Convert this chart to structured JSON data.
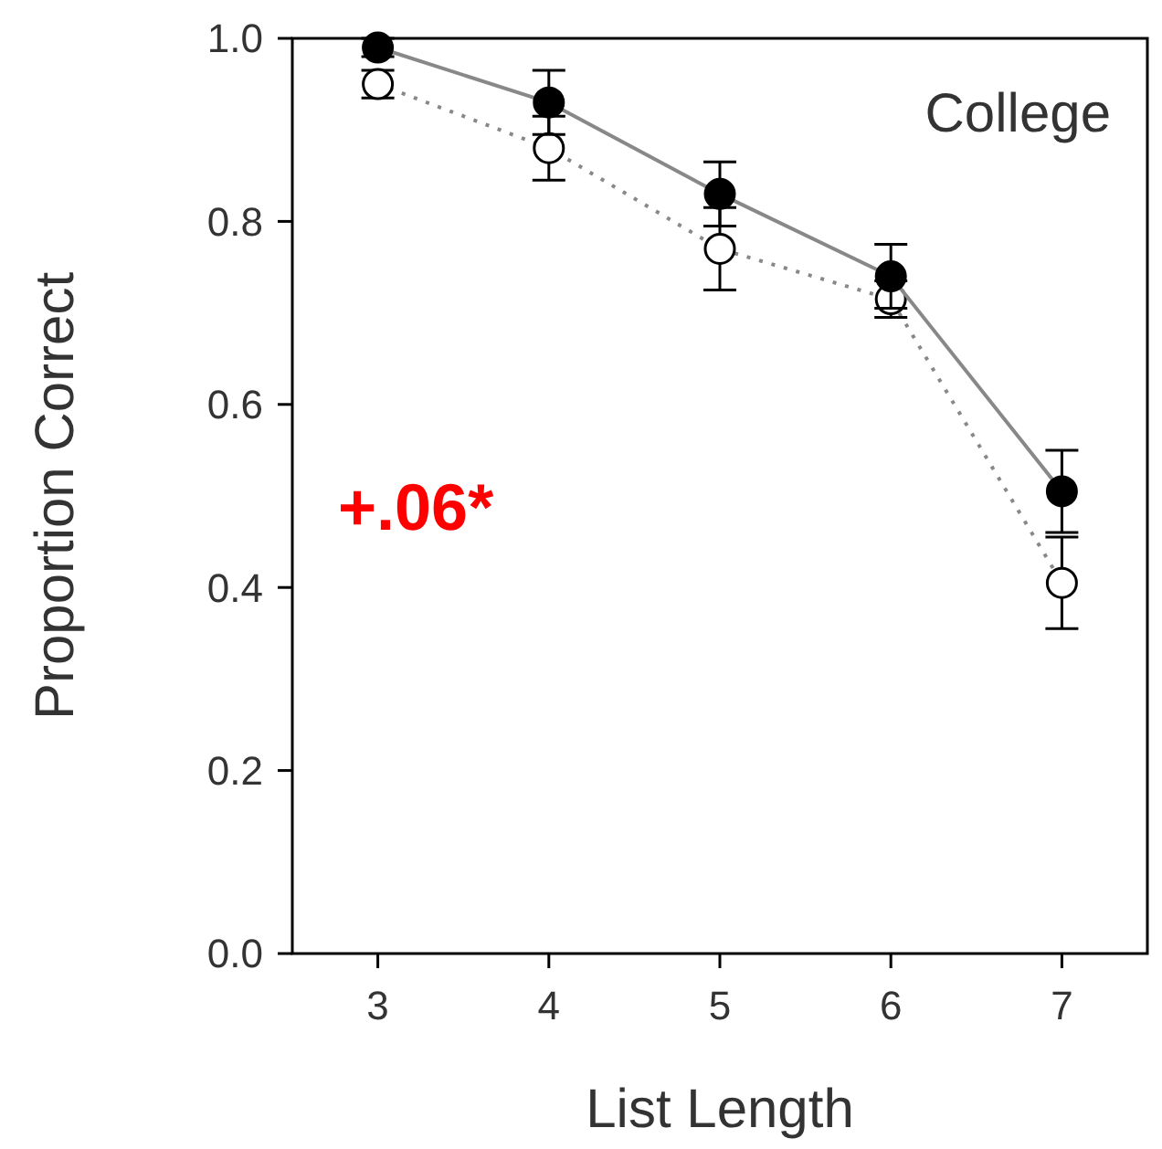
{
  "chart_data": {
    "type": "line",
    "xlabel": "List Length",
    "ylabel": "Proportion Correct",
    "x": [
      3,
      4,
      5,
      6,
      7
    ],
    "xlim": [
      2.5,
      7.5
    ],
    "xticks": [
      3,
      4,
      5,
      6,
      7
    ],
    "ylim": [
      0,
      1
    ],
    "yticks": [
      {
        "value": 0,
        "label": "0.0"
      },
      {
        "value": 0.2,
        "label": "0.2"
      },
      {
        "value": 0.4,
        "label": "0.4"
      },
      {
        "value": 0.6,
        "label": "0.6"
      },
      {
        "value": 0.8,
        "label": "0.8"
      },
      {
        "value": 1,
        "label": "1.0"
      }
    ],
    "marker": "circle",
    "grid": false,
    "annotations": [
      "College",
      "+.06*"
    ],
    "series": [
      {
        "color": "#000000",
        "line_style": "solid",
        "values": [
          0.99,
          0.93,
          0.83,
          0.74,
          0.505
        ],
        "errors": [
          0.01,
          0.035,
          0.035,
          0.035,
          0.045
        ]
      },
      {
        "color": "#ffffff",
        "line_style": "dotted",
        "values": [
          0.95,
          0.88,
          0.77,
          0.715,
          0.405
        ],
        "errors": [
          0.015,
          0.035,
          0.045,
          0.02,
          0.05
        ]
      }
    ]
  }
}
